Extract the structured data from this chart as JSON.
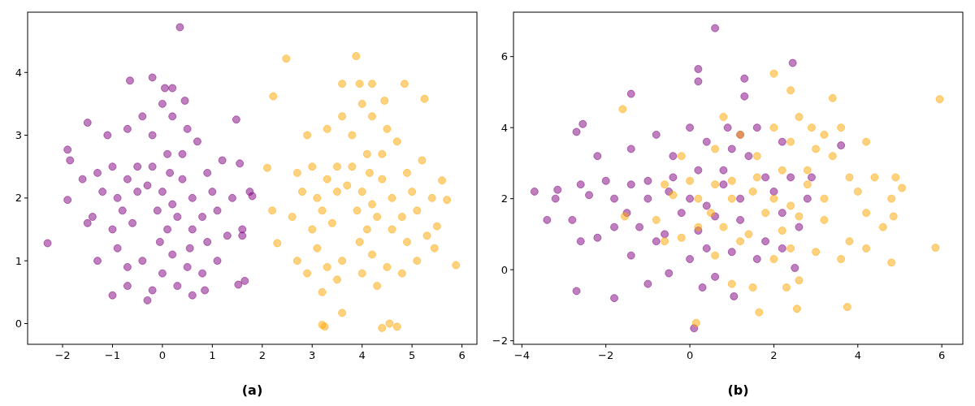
{
  "chart_data": [
    {
      "type": "scatter",
      "xlabel": "(a)",
      "marker": "circle",
      "xlim": [
        -2.7,
        6.3
      ],
      "ylim": [
        -0.33,
        4.96
      ],
      "xticks": [
        {
          "value": -2,
          "label": "−2"
        },
        {
          "value": -1,
          "label": "−1"
        },
        0,
        1,
        2,
        3,
        4,
        5,
        6
      ],
      "yticks": [
        0,
        1,
        2,
        3,
        4
      ],
      "series": [
        {
          "color": "#800080",
          "x": [
            0.35,
            -0.65,
            -0.2,
            0.05,
            0.2,
            -2.3,
            -1.9,
            -1.85,
            -1.9,
            -0.3,
            -0.2,
            -1.0,
            0.85,
            1.52,
            1.65,
            1.8,
            1.75,
            1.48,
            1.55,
            -1.5,
            0.6,
            -0.5,
            -0.3,
            0,
            0.2,
            0.4,
            -0.8,
            -0.6,
            0.1,
            0.3,
            0.6,
            0.9,
            -1.0,
            -1.2,
            -0.9,
            -0.4,
            0.2,
            0.5,
            0.9,
            1.1,
            1.2,
            0.7,
            0.2,
            -0.2,
            -0.7,
            -1.1,
            -1.3,
            -1.4,
            -1.3,
            -0.7,
            0.0,
            0.3,
            0.8,
            1.1,
            1.3,
            1.4,
            1.0,
            0.6,
            -0.1,
            -0.2,
            0.1,
            0.4,
            -0.5,
            -0.7,
            -0.9,
            0.5,
            -0.4,
            0.0,
            0.45,
            -0.05,
            0.15,
            0.8,
            -1.0,
            -1.5,
            -1.6,
            1.6,
            1.6,
            -0.7,
            0.55
          ],
          "values": [
            4.72,
            3.87,
            3.92,
            3.75,
            3.75,
            1.28,
            2.77,
            2.6,
            1.97,
            0.37,
            0.53,
            0.45,
            0.53,
            0.62,
            0.68,
            2.03,
            2.1,
            3.25,
            2.55,
            3.2,
            0.45,
            2.5,
            2.2,
            2.1,
            1.9,
            2.3,
            1.8,
            1.6,
            1.5,
            1.7,
            2.0,
            2.4,
            2.5,
            2.1,
            1.2,
            1.0,
            1.1,
            0.9,
            1.3,
            1.8,
            2.6,
            2.9,
            3.3,
            3.0,
            3.1,
            3.0,
            2.4,
            1.7,
            1.0,
            0.9,
            0.8,
            0.6,
            0.8,
            1.0,
            1.4,
            2.0,
            2.1,
            1.5,
            1.8,
            2.5,
            2.7,
            2.7,
            2.1,
            2.3,
            2.0,
            3.1,
            3.3,
            3.5,
            3.55,
            1.3,
            2.4,
            1.7,
            1.5,
            1.6,
            2.3,
            1.5,
            1.4,
            0.6,
            1.2
          ]
        },
        {
          "color": "#ffa500",
          "x": [
            2.48,
            3.88,
            2.22,
            5.88,
            3.6,
            3.2,
            3.25,
            4.4,
            4.55,
            4.7,
            2.1,
            2.2,
            2.3,
            5.7,
            5.6,
            5.25,
            4.85,
            3.6,
            3.95,
            4.2,
            3.5,
            3.7,
            4,
            4.2,
            4.4,
            3.2,
            3.4,
            4.1,
            4.3,
            4.6,
            4.9,
            3.0,
            2.8,
            3.1,
            3.6,
            4.2,
            4.5,
            4.9,
            5.1,
            5.2,
            4.7,
            4.2,
            3.8,
            3.3,
            2.9,
            2.7,
            2.6,
            2.7,
            3.3,
            4.0,
            4.3,
            4.8,
            5.1,
            5.3,
            5.4,
            5.0,
            4.6,
            3.9,
            3.8,
            4.1,
            4.4,
            3.5,
            3.3,
            3.1,
            4.5,
            3.6,
            4.0,
            4.45,
            3.95,
            4.15,
            4.8,
            3.0,
            5.45,
            3.2,
            2.9,
            3.5,
            5.5
          ],
          "values": [
            4.22,
            4.26,
            3.62,
            0.93,
            0.17,
            -0.02,
            -0.05,
            -0.07,
            0.0,
            -0.05,
            2.48,
            1.8,
            1.28,
            1.97,
            2.28,
            3.58,
            3.82,
            3.82,
            3.82,
            3.82,
            2.5,
            2.2,
            2.1,
            1.9,
            2.3,
            1.8,
            1.6,
            1.5,
            1.7,
            2.0,
            2.4,
            2.5,
            2.1,
            1.2,
            1.0,
            1.1,
            0.9,
            1.3,
            1.8,
            2.6,
            2.9,
            3.3,
            3.0,
            3.1,
            3.0,
            2.4,
            1.7,
            1.0,
            0.9,
            0.8,
            0.6,
            0.8,
            1.0,
            1.4,
            2.0,
            2.1,
            1.5,
            1.8,
            2.5,
            2.7,
            2.7,
            2.1,
            2.3,
            2.0,
            3.1,
            3.3,
            3.5,
            3.55,
            1.3,
            2.4,
            1.7,
            1.5,
            1.2,
            0.5,
            0.8,
            0.7,
            1.55
          ]
        }
      ]
    },
    {
      "type": "scatter",
      "xlabel": "(b)",
      "marker": "circle",
      "xlim": [
        -4.2,
        6.5
      ],
      "ylim": [
        -2.1,
        7.25
      ],
      "xticks": [
        {
          "value": -4,
          "label": "−4"
        },
        {
          "value": -2,
          "label": "−2"
        },
        0,
        2,
        4,
        6
      ],
      "yticks": [
        {
          "value": -2,
          "label": "−2"
        },
        0,
        2,
        4,
        6
      ],
      "series": [
        {
          "color": "#800080",
          "x": [
            0.6,
            0.2,
            0.2,
            2.45,
            1.3,
            1.3,
            -1.4,
            -3.7,
            -3.4,
            -3.2,
            -3.15,
            -2.7,
            -1.8,
            0.1,
            -2.7,
            -2.55,
            1.05,
            3.6,
            2.5,
            -1,
            -0.5,
            0,
            0.4,
            0.8,
            -1.5,
            -1.2,
            0.2,
            0.6,
            1.2,
            1.8,
            -2.0,
            -2.4,
            -1.8,
            -0.8,
            0.4,
            1.0,
            1.8,
            2.2,
            2.4,
            1.4,
            0.4,
            -0.4,
            -1.4,
            -2.2,
            -2.6,
            -2.8,
            -2.6,
            -1.4,
            0,
            0.6,
            1.6,
            2.2,
            2.6,
            2.8,
            2.0,
            1.2,
            -0.2,
            -0.4,
            0.2,
            0.8,
            -1.0,
            -1.4,
            -1.8,
            1.0,
            -0.8,
            0,
            0.9,
            -0.5,
            -1.0,
            0.3,
            1.2,
            -2.2,
            2.9,
            -0.6,
            1.6,
            2.2
          ],
          "values": [
            6.8,
            5.65,
            5.3,
            5.82,
            5.38,
            4.88,
            4.95,
            2.2,
            1.4,
            2.0,
            2.25,
            -0.6,
            -0.8,
            -1.65,
            3.88,
            4.1,
            -0.75,
            3.5,
            0.05,
            2.5,
            2.2,
            2.0,
            1.8,
            2.4,
            1.6,
            1.2,
            1.1,
            1.5,
            2.0,
            2.6,
            2.5,
            2.1,
            1.2,
            0.8,
            0.6,
            0.5,
            0.8,
            1.6,
            2.6,
            3.2,
            3.6,
            3.2,
            3.4,
            3.2,
            2.4,
            1.4,
            0.8,
            0.4,
            0.3,
            -0.2,
            0.3,
            0.6,
            1.2,
            2.0,
            2.2,
            1.4,
            1.6,
            2.6,
            2.8,
            2.8,
            2.0,
            2.4,
            2.0,
            3.4,
            3.8,
            4.0,
            4.0,
            -0.1,
            -0.4,
            -0.5,
            3.8,
            0.9,
            2.6,
            1.0,
            4.0,
            3.6
          ]
        },
        {
          "color": "#ffa500",
          "x": [
            5.95,
            5.85,
            0.15,
            1.65,
            2.55,
            3.75,
            2.0,
            2.4,
            3.4,
            -1.6,
            -1.55,
            5.05,
            4.8,
            4.85,
            1,
            1.5,
            2,
            2.4,
            2.8,
            0.5,
            0.8,
            2.2,
            2.6,
            3.2,
            3.8,
            0,
            -0.4,
            0.2,
            1.2,
            2.4,
            3.0,
            3.8,
            4.2,
            4.4,
            3.4,
            2.4,
            1.6,
            0.6,
            -0.2,
            -0.6,
            -0.8,
            -0.6,
            0.6,
            2,
            2.6,
            3.6,
            4.2,
            4.6,
            4.8,
            4.0,
            3.2,
            1.8,
            1.6,
            2.2,
            2.8,
            1.0,
            0.6,
            0.2,
            3.0,
            1.2,
            2.0,
            2.9,
            1.5,
            1.0,
            2.3,
            3.2,
            -0.2,
            4.9,
            1.4,
            3.6,
            4.2,
            0.8,
            2.6
          ],
          "values": [
            4.8,
            0.62,
            -1.5,
            -1.2,
            -1.1,
            -1.05,
            5.52,
            5.05,
            4.83,
            4.52,
            1.5,
            2.3,
            0.2,
            1.5,
            2.5,
            2.2,
            2.0,
            1.8,
            2.4,
            1.6,
            1.2,
            1.1,
            1.5,
            2.0,
            2.6,
            2.5,
            2.1,
            1.2,
            0.8,
            0.6,
            0.5,
            0.8,
            1.6,
            2.6,
            3.2,
            3.6,
            3.2,
            3.4,
            3.2,
            2.4,
            1.4,
            0.8,
            0.4,
            0.3,
            -0.3,
            0.3,
            0.6,
            1.2,
            2.0,
            2.2,
            1.4,
            1.6,
            2.6,
            2.8,
            2.8,
            2.0,
            2.4,
            2.0,
            3.4,
            3.8,
            4.0,
            4.0,
            -0.5,
            -0.4,
            -0.5,
            3.8,
            0.9,
            2.6,
            1.0,
            4.0,
            3.6,
            4.3,
            4.3
          ]
        }
      ]
    }
  ]
}
